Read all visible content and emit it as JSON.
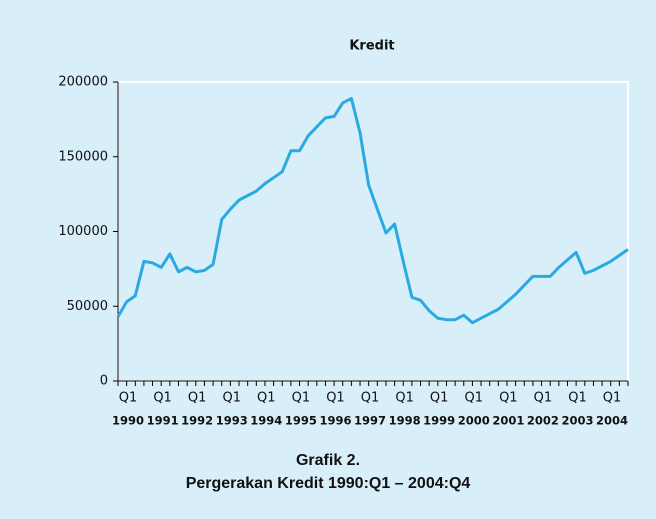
{
  "chart_data": {
    "type": "line",
    "title": "Kredit",
    "caption": [
      "Grafik 2.",
      "Pergerakan Kredit 1990:Q1 – 2004:Q4"
    ],
    "categories": [
      "Q1",
      null,
      null,
      null,
      "Q1",
      null,
      null,
      null,
      "Q1",
      null,
      null,
      null,
      "Q1",
      null,
      null,
      null,
      "Q1",
      null,
      null,
      null,
      "Q1",
      null,
      null,
      null,
      "Q1",
      null,
      null,
      null,
      "Q1",
      null,
      null,
      null,
      "Q1",
      null,
      null,
      null,
      "Q1",
      null,
      null,
      null,
      "Q1",
      null,
      null,
      null,
      "Q1",
      null,
      null,
      null,
      "Q1",
      null,
      null,
      null,
      "Q1",
      null,
      null,
      null,
      "Q1",
      null,
      null,
      null
    ],
    "years": [
      "1990",
      "1991",
      "1992",
      "1993",
      "1994",
      "1995",
      "1996",
      "1997",
      "1998",
      "1999",
      "2000",
      "2001",
      "2002",
      "2003",
      "2004"
    ],
    "series": [
      {
        "name": "Kredit",
        "color": "#29abe2",
        "values": [
          43000,
          53000,
          57000,
          80000,
          79000,
          76000,
          85000,
          73000,
          76000,
          73000,
          74000,
          78000,
          108000,
          115000,
          121000,
          124000,
          127000,
          132000,
          136000,
          140000,
          154000,
          154000,
          164000,
          170000,
          176000,
          177000,
          186000,
          189000,
          166000,
          131000,
          115000,
          99000,
          105000,
          80000,
          56000,
          54000,
          47000,
          42000,
          41000,
          41000,
          44000,
          39000,
          42000,
          45000,
          48000,
          53000,
          58000,
          64000,
          70000,
          70000,
          70000,
          76000,
          81000,
          86000,
          72000,
          74000,
          77000,
          80000,
          84000,
          88000
        ]
      }
    ],
    "ylim": [
      0,
      200000
    ],
    "yticks": [
      0,
      50000,
      100000,
      150000,
      200000
    ]
  }
}
